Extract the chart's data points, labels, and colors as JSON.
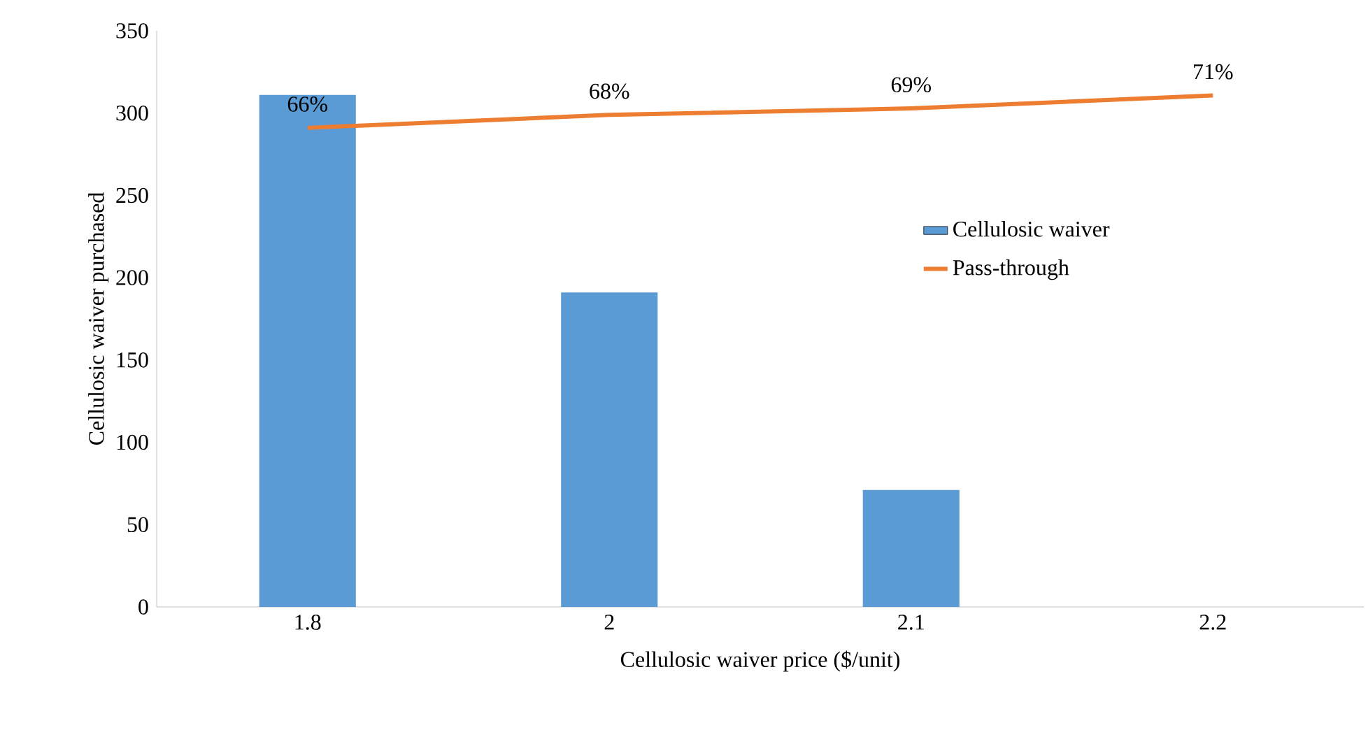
{
  "chart_data": {
    "type": "bar",
    "xlabel": "Cellulosic waiver price ($/unit)",
    "ylabel": "Cellulosic waiver purchased",
    "categories": [
      "1.8",
      "2",
      "2.1",
      "2.2"
    ],
    "series": [
      {
        "name": "Cellulosic waiver",
        "color": "#5b9bd5",
        "values": [
          311,
          191,
          71,
          0
        ]
      },
      {
        "name": "Pass-through",
        "type": "line",
        "axis": "y2",
        "color": "#ed7d31",
        "values": [
          66,
          68,
          69,
          71
        ],
        "value_labels": [
          "66%",
          "68%",
          "69%",
          "71%"
        ]
      }
    ],
    "ylim": [
      0,
      350
    ],
    "yticks": [
      0,
      50,
      100,
      150,
      200,
      250,
      300,
      350
    ],
    "y2lim": [
      -8,
      81
    ],
    "grid": false,
    "legend": "right",
    "marker": "none",
    "line_style": "solid"
  }
}
